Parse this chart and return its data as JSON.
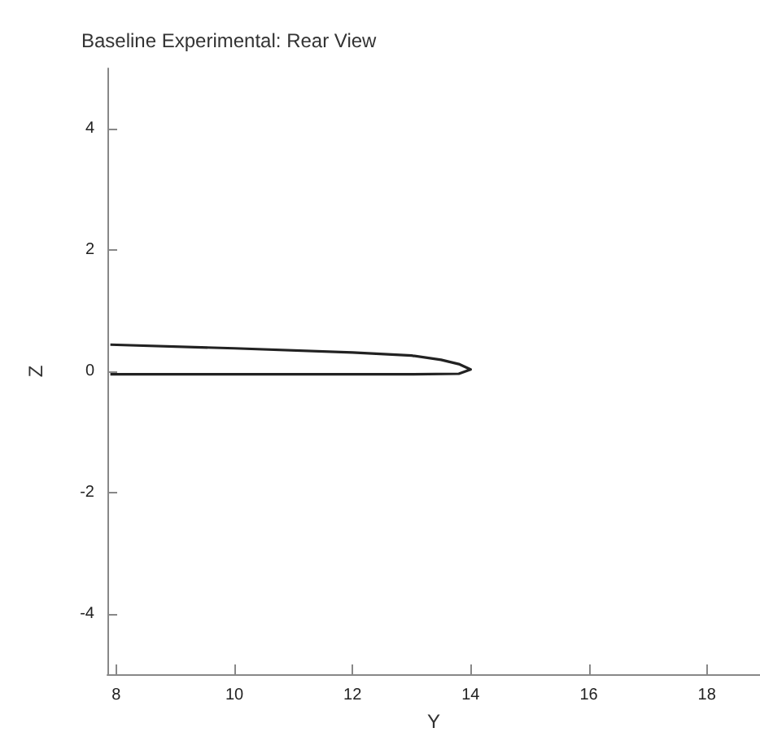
{
  "chart_data": {
    "type": "line",
    "title": "Baseline Experimental: Rear View",
    "xlabel": "Y",
    "ylabel": "Z",
    "x": [
      7.9,
      10,
      12,
      13,
      13.5,
      13.8,
      14,
      13.8,
      13,
      12,
      10,
      7.9
    ],
    "series": [
      {
        "color": "#222222",
        "values": [
          0.44,
          0.38,
          0.31,
          0.26,
          0.19,
          0.12,
          0.03,
          -0.04,
          -0.05,
          -0.05,
          -0.05,
          -0.05
        ]
      }
    ],
    "xlim": [
      7.85,
      18.9
    ],
    "xticks": [
      8,
      10,
      12,
      14,
      16,
      18
    ],
    "ylim": [
      -5,
      5
    ],
    "yticks": [
      -4,
      -2,
      0,
      2,
      4
    ],
    "grid": false,
    "marker": "none",
    "line_style": "solid"
  }
}
